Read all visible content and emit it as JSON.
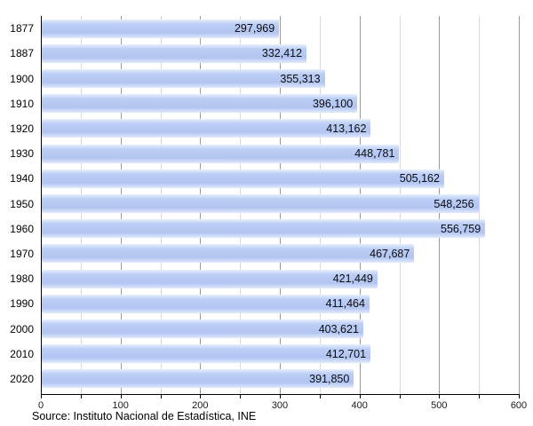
{
  "chart_data": {
    "type": "bar",
    "orientation": "horizontal",
    "title": "",
    "xlabel": "",
    "ylabel": "",
    "categories": [
      "1877",
      "1887",
      "1900",
      "1910",
      "1920",
      "1930",
      "1940",
      "1950",
      "1960",
      "1970",
      "1980",
      "1990",
      "2000",
      "2010",
      "2020"
    ],
    "values": [
      297969,
      332412,
      355313,
      396100,
      413162,
      448781,
      505162,
      548256,
      556759,
      467687,
      421449,
      411464,
      403621,
      412701,
      391850
    ],
    "value_labels": [
      "297,969",
      "332,412",
      "355,313",
      "396,100",
      "413,162",
      "448,781",
      "505,162",
      "548,256",
      "556,759",
      "467,687",
      "421,449",
      "411,464",
      "403,621",
      "412,701",
      "391,850"
    ],
    "xlim": [
      0,
      600
    ],
    "x_ticks": [
      0,
      100,
      200,
      300,
      400,
      500,
      600
    ],
    "x_tick_labels": [
      "0",
      "100",
      "200",
      "300",
      "400",
      "500",
      "600"
    ],
    "minor_tick_step": 50,
    "value_axis_divisor": 1000,
    "grid": true,
    "legend": false,
    "bar_color": "#b4c7f2",
    "grid_minor_color": "#d9d9d9",
    "grid_major_color": "#9b9b9b",
    "axis_color": "#000000",
    "label_color": "#0b0b0f"
  },
  "source_note": "Source: Instituto Nacional de Estadística, INE"
}
